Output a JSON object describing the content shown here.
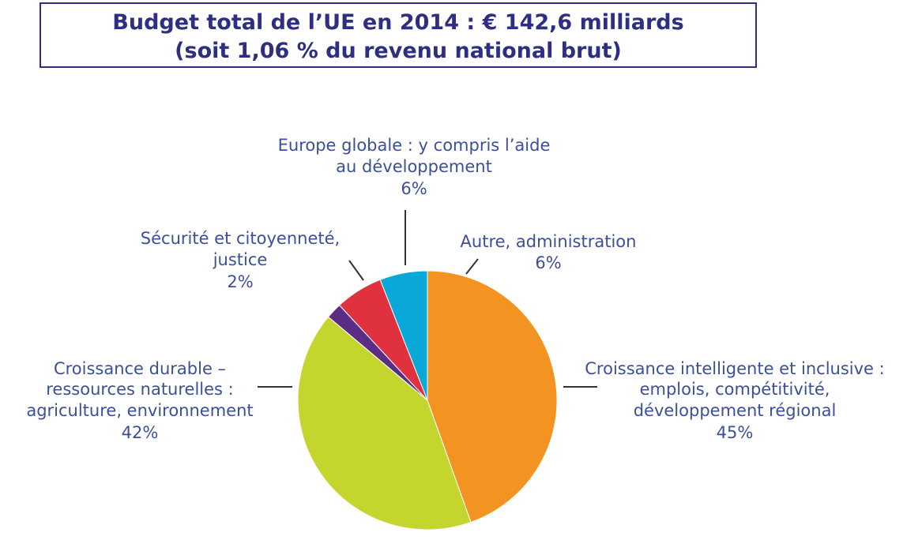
{
  "title": {
    "line1": "Budget total de l’UE en 2014 : € 142,6 milliards",
    "line2": "(soit 1,06 % du revenu national brut)"
  },
  "chart_data": {
    "type": "pie",
    "title": "Budget total de l’UE en 2014 : € 142,6 milliards (soit 1,06 % du revenu national brut)",
    "slices": [
      {
        "label_lines": [
          "Croissance intelligente et inclusive :",
          "emplois, compétitivité,",
          "développement régional"
        ],
        "value": 45,
        "value_label": "45%",
        "color": "#f39322"
      },
      {
        "label_lines": [
          "Croissance durable –",
          "ressources naturelles :",
          "agriculture, environnement"
        ],
        "value": 42,
        "value_label": "42%",
        "color": "#c4d52e"
      },
      {
        "label_lines": [
          "Sécurité et citoyenneté,",
          "justice"
        ],
        "value": 2,
        "value_label": "2%",
        "color": "#5b2d84"
      },
      {
        "label_lines": [
          "Europe globale : y compris l’aide",
          "au développement"
        ],
        "value": 6,
        "value_label": "6%",
        "color": "#e0323e"
      },
      {
        "label_lines": [
          "Autre, administration"
        ],
        "value": 6,
        "value_label": "6%",
        "color": "#0aa8d8"
      }
    ]
  }
}
